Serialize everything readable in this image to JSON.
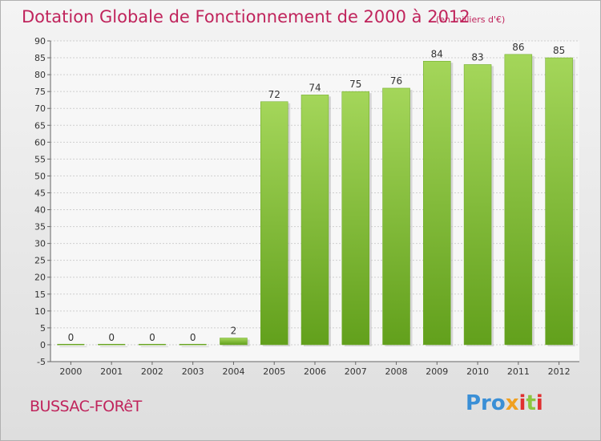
{
  "chart_data": {
    "type": "bar",
    "title": "Dotation Globale de Fonctionnement de 2000 à 2012",
    "subtitle": "(en milliers d'€)",
    "categories": [
      "2000",
      "2001",
      "2002",
      "2003",
      "2004",
      "2005",
      "2006",
      "2007",
      "2008",
      "2009",
      "2010",
      "2011",
      "2012"
    ],
    "values": [
      0,
      0,
      0,
      0,
      2,
      72,
      74,
      75,
      76,
      84,
      83,
      86,
      85
    ],
    "ylim": [
      -5,
      90
    ],
    "yticks": [
      -5,
      0,
      5,
      10,
      15,
      20,
      25,
      30,
      35,
      40,
      45,
      50,
      55,
      60,
      65,
      70,
      75,
      80,
      85,
      90
    ],
    "grid": true,
    "bar_color": "#7dbb2e",
    "bar_color_light": "#a4d65a"
  },
  "commune": "BUSSAC-FORêT",
  "brand": {
    "p1": "Pro",
    "p2": "x",
    "p3": "i",
    "p4": "t",
    "p5": "i"
  }
}
